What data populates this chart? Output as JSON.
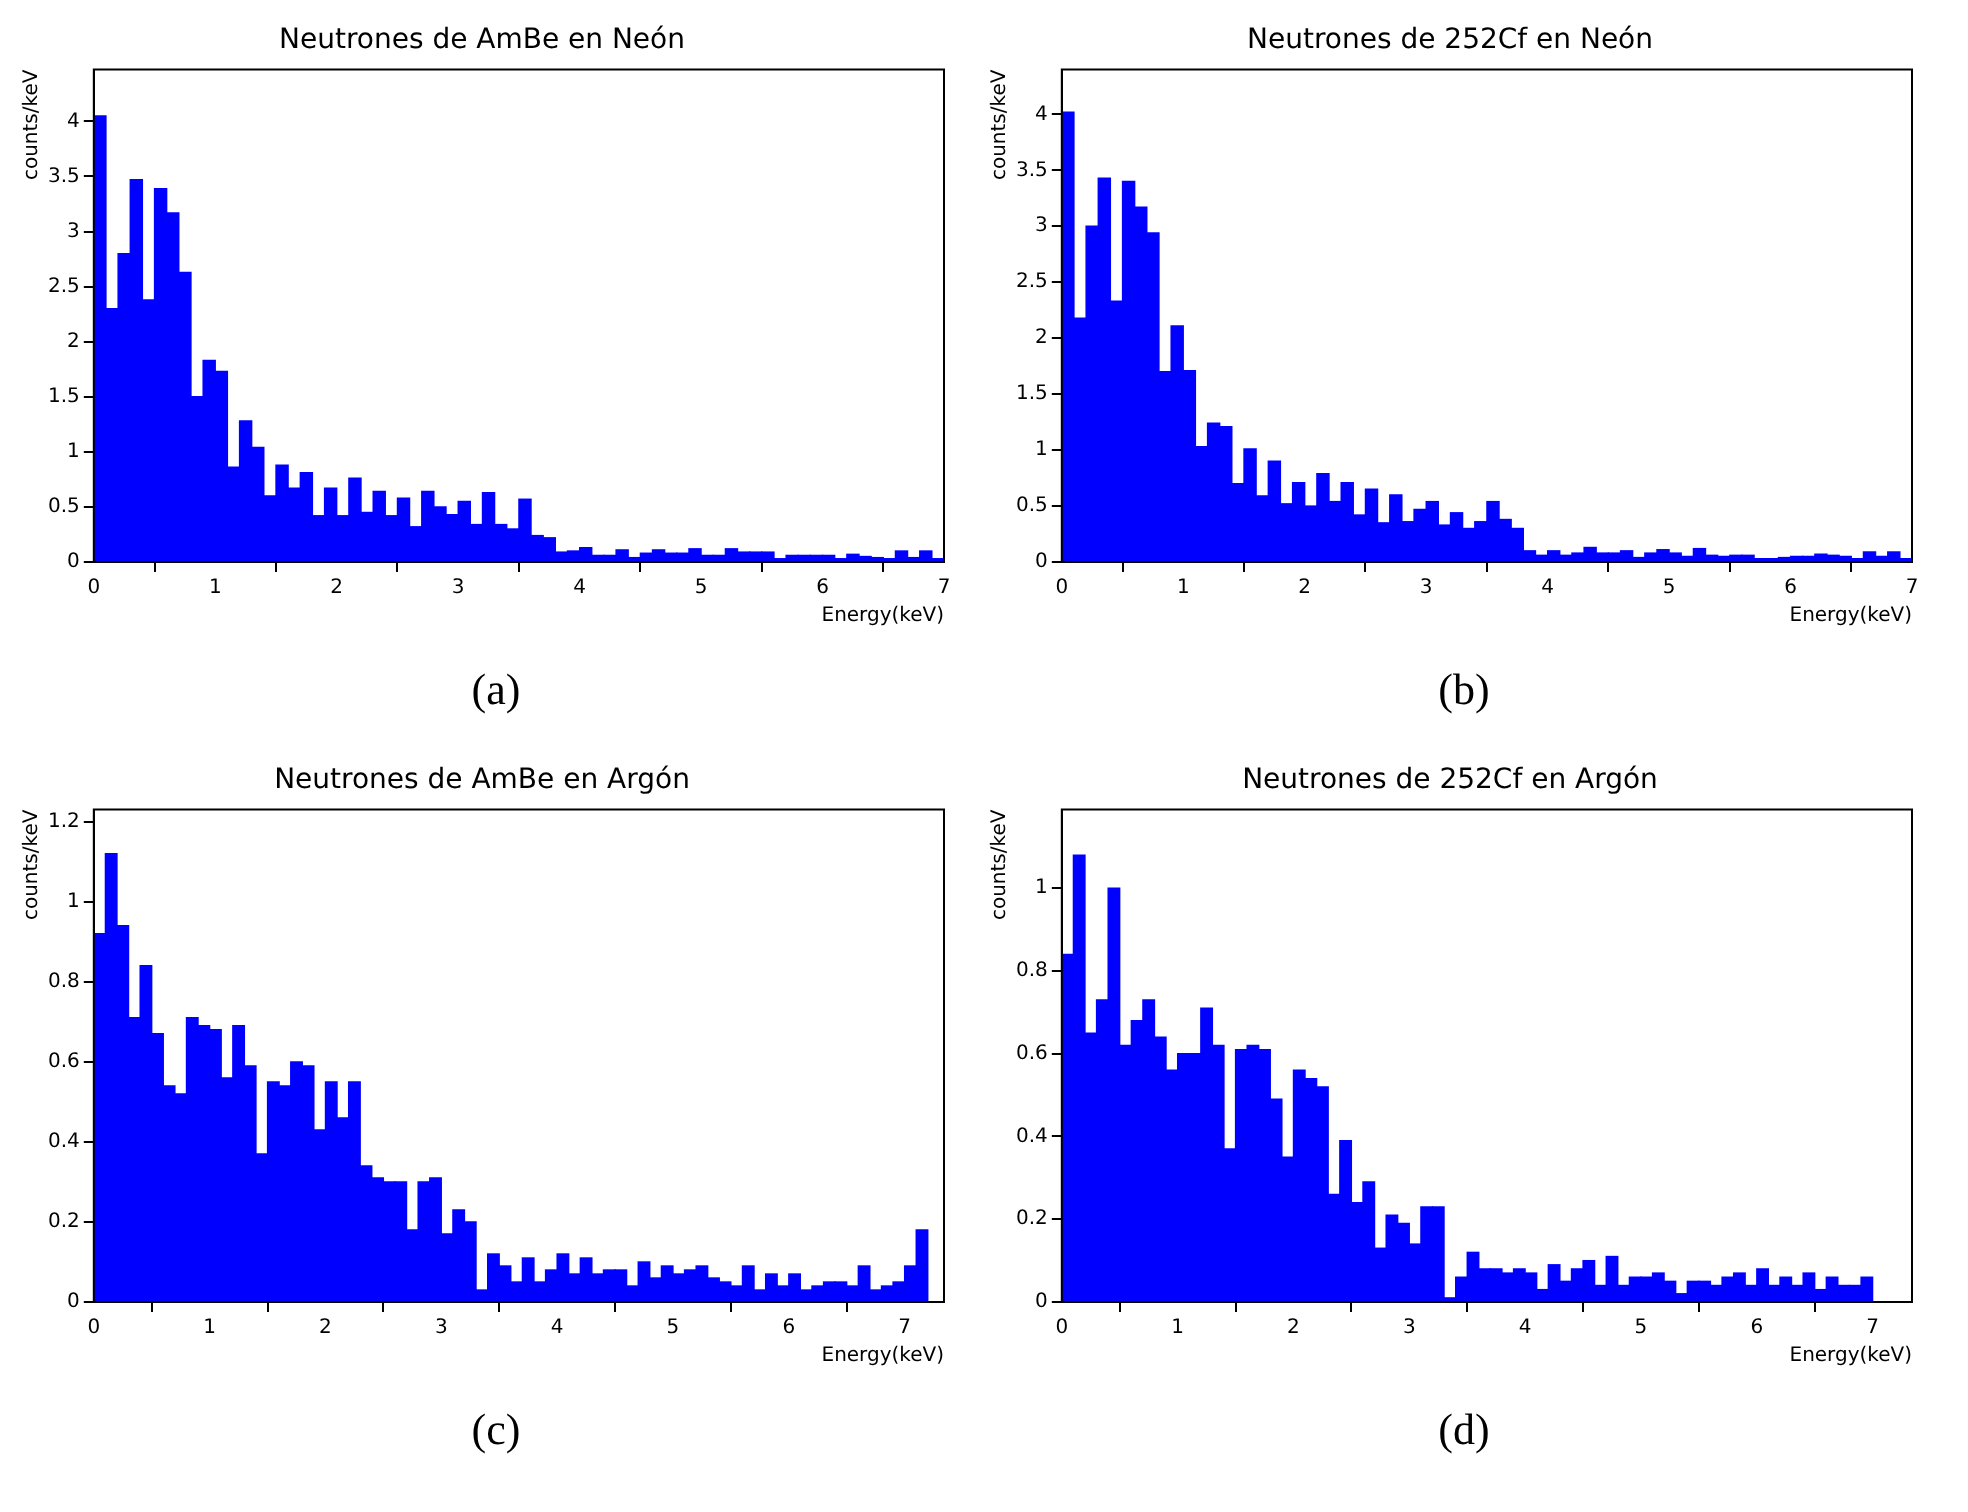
{
  "chart_data": [
    {
      "type": "histogram",
      "title": "Neutrones de AmBe en Neón",
      "xlabel": "Energy(keV)",
      "ylabel": "counts/keV",
      "color": "#0000ff",
      "xlim": [
        0,
        7
      ],
      "xticks": [
        0,
        1,
        2,
        3,
        4,
        5,
        6,
        7
      ],
      "ylim": [
        0,
        4.47
      ],
      "yticks": [
        0,
        0.5,
        1,
        1.5,
        2,
        2.5,
        3,
        3.5,
        4
      ],
      "annotations": [
        "(a)"
      ],
      "bins": [
        0,
        0.1,
        0.2,
        0.3,
        0.4,
        0.5,
        0.6,
        0.7,
        0.8,
        0.9,
        1,
        1.1,
        1.2,
        1.3,
        1.4,
        1.5,
        1.6,
        1.7,
        1.8,
        1.9,
        2,
        2.1,
        2.2,
        2.3,
        2.4,
        2.5,
        2.6,
        2.7,
        2.8,
        2.9,
        3,
        3.1,
        3.2,
        3.3,
        3.4,
        3.5,
        3.6,
        3.7,
        3.8,
        3.9,
        4,
        4.1,
        4.2,
        4.3,
        4.4,
        4.5,
        4.6,
        4.7,
        4.8,
        4.9,
        5,
        5.1,
        5.2,
        5.3,
        5.4,
        5.5,
        5.6,
        5.7,
        5.8,
        5.9,
        6,
        6.1,
        6.2,
        6.3,
        6.4,
        6.5,
        6.6,
        6.7,
        6.8,
        6.9,
        7
      ],
      "values": [
        4.05,
        2.3,
        2.8,
        3.47,
        2.38,
        3.39,
        3.17,
        2.63,
        1.5,
        1.83,
        1.73,
        0.86,
        1.28,
        1.04,
        0.6,
        0.88,
        0.67,
        0.81,
        0.42,
        0.67,
        0.42,
        0.76,
        0.45,
        0.64,
        0.42,
        0.58,
        0.32,
        0.64,
        0.5,
        0.43,
        0.55,
        0.34,
        0.63,
        0.34,
        0.3,
        0.57,
        0.24,
        0.22,
        0.09,
        0.1,
        0.13,
        0.06,
        0.06,
        0.11,
        0.04,
        0.08,
        0.11,
        0.08,
        0.08,
        0.12,
        0.06,
        0.06,
        0.12,
        0.09,
        0.09,
        0.09,
        0.03,
        0.06,
        0.06,
        0.06,
        0.06,
        0.03,
        0.07,
        0.05,
        0.04,
        0.03,
        0.1,
        0.04,
        0.1,
        0.03
      ]
    },
    {
      "type": "histogram",
      "title": "Neutrones de 252Cf en Neón",
      "xlabel": "Energy(keV)",
      "ylabel": "counts/keV",
      "color": "#0000ff",
      "xlim": [
        0,
        7
      ],
      "xticks": [
        0,
        1,
        2,
        3,
        4,
        5,
        6,
        7
      ],
      "ylim": [
        0,
        4.4
      ],
      "yticks": [
        0,
        0.5,
        1,
        1.5,
        2,
        2.5,
        3,
        3.5,
        4
      ],
      "annotations": [
        "(b)"
      ],
      "bins": [
        0,
        0.1,
        0.2,
        0.3,
        0.4,
        0.5,
        0.6,
        0.7,
        0.8,
        0.9,
        1,
        1.1,
        1.2,
        1.3,
        1.4,
        1.5,
        1.6,
        1.7,
        1.8,
        1.9,
        2,
        2.1,
        2.2,
        2.3,
        2.4,
        2.5,
        2.6,
        2.7,
        2.8,
        2.9,
        3,
        3.1,
        3.2,
        3.3,
        3.4,
        3.5,
        3.6,
        3.7,
        3.8,
        3.9,
        4,
        4.1,
        4.2,
        4.3,
        4.4,
        4.5,
        4.6,
        4.7,
        4.8,
        4.9,
        5,
        5.1,
        5.2,
        5.3,
        5.4,
        5.5,
        5.6,
        5.7,
        5.8,
        5.9,
        6,
        6.1,
        6.2,
        6.3,
        6.4,
        6.5,
        6.6,
        6.7,
        6.8,
        6.9,
        7
      ],
      "values": [
        4.02,
        2.18,
        3.0,
        3.43,
        2.33,
        3.4,
        3.17,
        2.94,
        1.7,
        2.11,
        1.71,
        1.03,
        1.24,
        1.21,
        0.7,
        1.01,
        0.59,
        0.9,
        0.52,
        0.71,
        0.5,
        0.79,
        0.54,
        0.71,
        0.42,
        0.65,
        0.35,
        0.6,
        0.36,
        0.47,
        0.54,
        0.33,
        0.44,
        0.3,
        0.36,
        0.54,
        0.38,
        0.3,
        0.1,
        0.06,
        0.1,
        0.06,
        0.08,
        0.13,
        0.08,
        0.08,
        0.1,
        0.04,
        0.08,
        0.11,
        0.08,
        0.05,
        0.12,
        0.06,
        0.05,
        0.06,
        0.06,
        0.03,
        0.03,
        0.04,
        0.05,
        0.05,
        0.07,
        0.06,
        0.05,
        0.03,
        0.09,
        0.05,
        0.09,
        0.03
      ]
    },
    {
      "type": "histogram",
      "title": "Neutrones de AmBe en Argón",
      "xlabel": "Energy(keV)",
      "ylabel": "counts/keV",
      "color": "#0000ff",
      "xlim": [
        0,
        7.34
      ],
      "xticks": [
        0,
        1,
        2,
        3,
        4,
        5,
        6,
        7
      ],
      "ylim": [
        0,
        1.23
      ],
      "yticks": [
        0,
        0.2,
        0.4,
        0.6,
        0.8,
        1,
        1.2
      ],
      "annotations": [
        "(c)"
      ],
      "bins": [
        0,
        0.1,
        0.2,
        0.3,
        0.4,
        0.5,
        0.6,
        0.7,
        0.8,
        0.9,
        1,
        1.1,
        1.2,
        1.3,
        1.4,
        1.5,
        1.6,
        1.7,
        1.8,
        1.9,
        2,
        2.1,
        2.2,
        2.3,
        2.4,
        2.5,
        2.6,
        2.7,
        2.8,
        2.9,
        3,
        3.1,
        3.2,
        3.3,
        3.4,
        3.5,
        3.6,
        3.7,
        3.8,
        3.9,
        4,
        4.1,
        4.2,
        4.3,
        4.4,
        4.5,
        4.6,
        4.7,
        4.8,
        4.9,
        5,
        5.1,
        5.2,
        5.3,
        5.4,
        5.5,
        5.6,
        5.7,
        5.8,
        5.9,
        6,
        6.1,
        6.2,
        6.3,
        6.4,
        6.5,
        6.6,
        6.7,
        6.8,
        6.9,
        7,
        7.1,
        7.2
      ],
      "values": [
        0.92,
        1.12,
        0.94,
        0.71,
        0.84,
        0.67,
        0.54,
        0.52,
        0.71,
        0.69,
        0.68,
        0.56,
        0.69,
        0.59,
        0.37,
        0.55,
        0.54,
        0.6,
        0.59,
        0.43,
        0.55,
        0.46,
        0.55,
        0.34,
        0.31,
        0.3,
        0.3,
        0.18,
        0.3,
        0.31,
        0.17,
        0.23,
        0.2,
        0.03,
        0.12,
        0.09,
        0.05,
        0.11,
        0.05,
        0.08,
        0.12,
        0.07,
        0.11,
        0.07,
        0.08,
        0.08,
        0.04,
        0.1,
        0.06,
        0.09,
        0.07,
        0.08,
        0.09,
        0.06,
        0.05,
        0.04,
        0.09,
        0.03,
        0.07,
        0.04,
        0.07,
        0.03,
        0.04,
        0.05,
        0.05,
        0.04,
        0.09,
        0.03,
        0.04,
        0.05,
        0.09,
        0.18
      ]
    },
    {
      "type": "histogram",
      "title": "Neutrones de 252Cf en Argón",
      "xlabel": "Energy(keV)",
      "ylabel": "counts/keV",
      "color": "#0000ff",
      "xlim": [
        0,
        7.34
      ],
      "xticks": [
        0,
        1,
        2,
        3,
        4,
        5,
        6,
        7
      ],
      "ylim": [
        0,
        1.19
      ],
      "yticks": [
        0,
        0.2,
        0.4,
        0.6,
        0.8,
        1
      ],
      "annotations": [
        "(d)"
      ],
      "bins": [
        0,
        0.1,
        0.2,
        0.3,
        0.4,
        0.5,
        0.6,
        0.7,
        0.8,
        0.9,
        1,
        1.1,
        1.2,
        1.3,
        1.4,
        1.5,
        1.6,
        1.7,
        1.8,
        1.9,
        2,
        2.1,
        2.2,
        2.3,
        2.4,
        2.5,
        2.6,
        2.7,
        2.8,
        2.9,
        3,
        3.1,
        3.2,
        3.3,
        3.4,
        3.5,
        3.6,
        3.7,
        3.8,
        3.9,
        4,
        4.1,
        4.2,
        4.3,
        4.4,
        4.5,
        4.6,
        4.7,
        4.8,
        4.9,
        5,
        5.1,
        5.2,
        5.3,
        5.4,
        5.5,
        5.6,
        5.7,
        5.8,
        5.9,
        6,
        6.1,
        6.2,
        6.3,
        6.4,
        6.5,
        6.6,
        6.7,
        6.8,
        6.9,
        7
      ],
      "values": [
        0.84,
        1.08,
        0.65,
        0.73,
        1.0,
        0.62,
        0.68,
        0.73,
        0.64,
        0.56,
        0.6,
        0.6,
        0.71,
        0.62,
        0.37,
        0.61,
        0.62,
        0.61,
        0.49,
        0.35,
        0.56,
        0.54,
        0.52,
        0.26,
        0.39,
        0.24,
        0.29,
        0.13,
        0.21,
        0.19,
        0.14,
        0.23,
        0.23,
        0.01,
        0.06,
        0.12,
        0.08,
        0.08,
        0.07,
        0.08,
        0.07,
        0.03,
        0.09,
        0.05,
        0.08,
        0.1,
        0.04,
        0.11,
        0.04,
        0.06,
        0.06,
        0.07,
        0.05,
        0.02,
        0.05,
        0.05,
        0.04,
        0.06,
        0.07,
        0.04,
        0.08,
        0.04,
        0.06,
        0.04,
        0.07,
        0.03,
        0.06,
        0.04,
        0.04,
        0.06
      ]
    }
  ]
}
